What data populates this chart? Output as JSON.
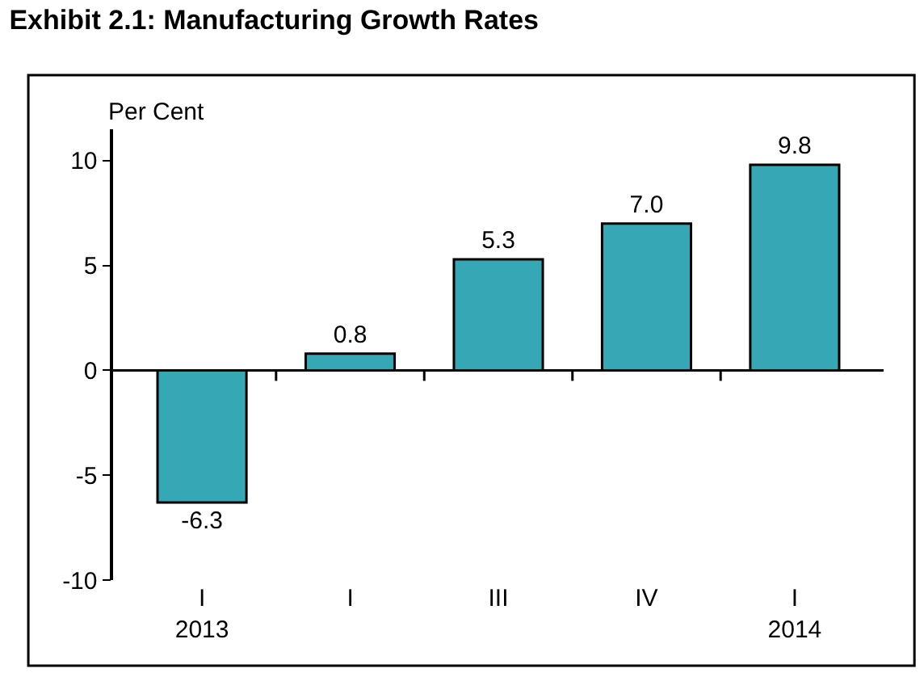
{
  "chart_data": {
    "type": "bar",
    "title": "Exhibit 2.1: Manufacturing Growth Rates",
    "ylabel": "Per Cent",
    "categories": [
      "I\n2013",
      "I",
      "III",
      "IV",
      "I\n2014"
    ],
    "values": [
      -6.3,
      0.8,
      5.3,
      7.0,
      9.8
    ],
    "value_labels": [
      "-6.3",
      "0.8",
      "5.3",
      "7.0",
      "9.8"
    ],
    "color": "#35a7b5",
    "ylim": [
      -10,
      11.5
    ],
    "yticks": [
      -10,
      -5,
      0,
      5,
      10
    ],
    "legend": false
  }
}
